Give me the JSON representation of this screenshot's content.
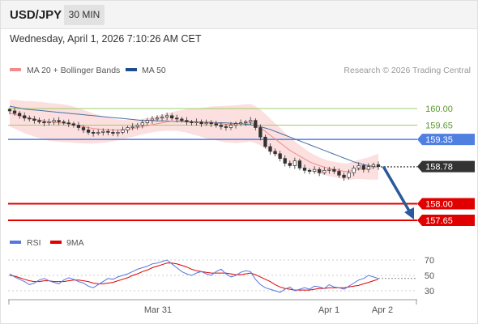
{
  "header": {
    "symbol": "USD/JPY",
    "interval": "30 MIN",
    "timestamp": "Wednesday, April 1, 2026 7:10:26 AM CET"
  },
  "legend": {
    "ma20_label": "MA 20 + Bollinger Bands",
    "ma50_label": "MA 50",
    "copyright": "Research © 2026 Trading Central",
    "rsi_label": "RSI",
    "ma9_label": "9MA"
  },
  "colors": {
    "ma20": "#f08c8c",
    "bollinger_fill": "#fbd9d9",
    "ma50": "#4a6fa5",
    "resistance_green": "#9ccf6a",
    "pivot_blue": "#4f7fe0",
    "support_red": "#e00000",
    "last_price_bg": "#333333",
    "forecast_arrow": "#2a5a9c",
    "rsi": "#5577dd",
    "rsi_ma": "#e00000"
  },
  "chart_data": [
    {
      "type": "candlestick",
      "title": "USD/JPY",
      "x_tick_labels": [
        "Mar 31",
        "Apr 1",
        "Apr 2"
      ],
      "y_range": [
        157.5,
        160.3
      ],
      "levels": [
        {
          "value": 160.0,
          "label": "160.00",
          "kind": "resistance",
          "color": "#9ccf6a"
        },
        {
          "value": 159.65,
          "label": "159.65",
          "kind": "resistance",
          "color": "#9ccf6a"
        },
        {
          "value": 159.35,
          "label": "159.35",
          "kind": "pivot",
          "color": "#4f7fe0"
        },
        {
          "value": 158.0,
          "label": "158.00",
          "kind": "support",
          "color": "#e00000"
        },
        {
          "value": 157.65,
          "label": "157.65",
          "kind": "support",
          "color": "#e00000"
        }
      ],
      "last_price": {
        "value": 158.78,
        "label": "158.78"
      },
      "series": [
        {
          "name": "MA 20 + Bollinger Bands",
          "type": "line"
        },
        {
          "name": "MA 50",
          "type": "line"
        }
      ],
      "close": [
        159.95,
        159.9,
        159.85,
        159.8,
        159.78,
        159.75,
        159.72,
        159.7,
        159.72,
        159.75,
        159.72,
        159.7,
        159.68,
        159.65,
        159.6,
        159.55,
        159.5,
        159.48,
        159.5,
        159.52,
        159.5,
        159.48,
        159.5,
        159.55,
        159.6,
        159.62,
        159.65,
        159.7,
        159.75,
        159.78,
        159.8,
        159.82,
        159.85,
        159.8,
        159.78,
        159.75,
        159.72,
        159.7,
        159.72,
        159.68,
        159.7,
        159.68,
        159.65,
        159.62,
        159.6,
        159.65,
        159.68,
        159.7,
        159.72,
        159.75,
        159.6,
        159.4,
        159.2,
        159.1,
        159.05,
        158.95,
        158.85,
        158.8,
        158.9,
        158.75,
        158.7,
        158.68,
        158.72,
        158.65,
        158.7,
        158.72,
        158.68,
        158.6,
        158.55,
        158.65,
        158.75,
        158.8,
        158.72,
        158.78,
        158.82,
        158.78
      ],
      "ma20": [
        159.9,
        159.88,
        159.85,
        159.82,
        159.8,
        159.78,
        159.76,
        159.74,
        159.72,
        159.71,
        159.7,
        159.69,
        159.68,
        159.66,
        159.64,
        159.62,
        159.6,
        159.58,
        159.57,
        159.56,
        159.55,
        159.55,
        159.55,
        159.56,
        159.57,
        159.58,
        159.6,
        159.62,
        159.64,
        159.66,
        159.68,
        159.7,
        159.72,
        159.73,
        159.74,
        159.74,
        159.74,
        159.73,
        159.72,
        159.71,
        159.7,
        159.7,
        159.69,
        159.68,
        159.67,
        159.67,
        159.67,
        159.68,
        159.69,
        159.7,
        159.66,
        159.6,
        159.52,
        159.44,
        159.36,
        159.28,
        159.2,
        159.12,
        159.06,
        159.0,
        158.94,
        158.88,
        158.84,
        158.8,
        158.77,
        158.74,
        158.72,
        158.7,
        158.68,
        158.68,
        158.7,
        158.72,
        158.73,
        158.74,
        158.76,
        158.78
      ],
      "ma50": [
        160.05,
        160.03,
        160.01,
        159.99,
        159.98,
        159.97,
        159.96,
        159.95,
        159.94,
        159.93,
        159.92,
        159.91,
        159.9,
        159.89,
        159.88,
        159.87,
        159.86,
        159.85,
        159.84,
        159.83,
        159.82,
        159.81,
        159.8,
        159.79,
        159.78,
        159.77,
        159.76,
        159.75,
        159.75,
        159.75,
        159.74,
        159.74,
        159.74,
        159.73,
        159.73,
        159.73,
        159.72,
        159.72,
        159.72,
        159.71,
        159.71,
        159.71,
        159.7,
        159.7,
        159.7,
        159.69,
        159.69,
        159.68,
        159.67,
        159.66,
        159.64,
        159.62,
        159.59,
        159.56,
        159.52,
        159.48,
        159.44,
        159.4,
        159.36,
        159.32,
        159.28,
        159.24,
        159.2,
        159.16,
        159.12,
        159.08,
        159.04,
        159.0,
        158.96,
        158.92,
        158.88,
        158.85,
        158.82,
        158.8,
        158.78,
        158.77
      ]
    },
    {
      "type": "line",
      "title": "RSI",
      "y_tick_labels": [
        "70",
        "50",
        "30"
      ],
      "y_range": [
        20,
        80
      ],
      "series": [
        {
          "name": "RSI",
          "values": [
            52,
            48,
            45,
            42,
            38,
            40,
            44,
            46,
            43,
            41,
            39,
            44,
            47,
            45,
            42,
            40,
            36,
            34,
            38,
            42,
            46,
            45,
            48,
            50,
            52,
            55,
            58,
            60,
            62,
            65,
            66,
            68,
            70,
            65,
            60,
            55,
            52,
            50,
            53,
            55,
            52,
            50,
            55,
            58,
            52,
            48,
            50,
            54,
            56,
            55,
            45,
            38,
            34,
            32,
            30,
            28,
            32,
            35,
            30,
            32,
            34,
            32,
            36,
            35,
            33,
            38,
            35,
            34,
            32,
            36,
            40,
            44,
            46,
            50,
            48,
            46
          ]
        },
        {
          "name": "9MA",
          "values": [
            50,
            49,
            47,
            45,
            43,
            42,
            42,
            43,
            43,
            42,
            42,
            42,
            43,
            44,
            44,
            43,
            42,
            40,
            39,
            39,
            40,
            41,
            43,
            45,
            47,
            50,
            52,
            55,
            57,
            60,
            62,
            64,
            66,
            66,
            65,
            63,
            61,
            58,
            56,
            55,
            54,
            53,
            53,
            53,
            53,
            52,
            51,
            51,
            52,
            53,
            51,
            48,
            45,
            42,
            38,
            35,
            33,
            32,
            31,
            31,
            31,
            31,
            32,
            33,
            33,
            34,
            34,
            34,
            34,
            35,
            36,
            37,
            39,
            41,
            43,
            45
          ]
        }
      ]
    }
  ]
}
